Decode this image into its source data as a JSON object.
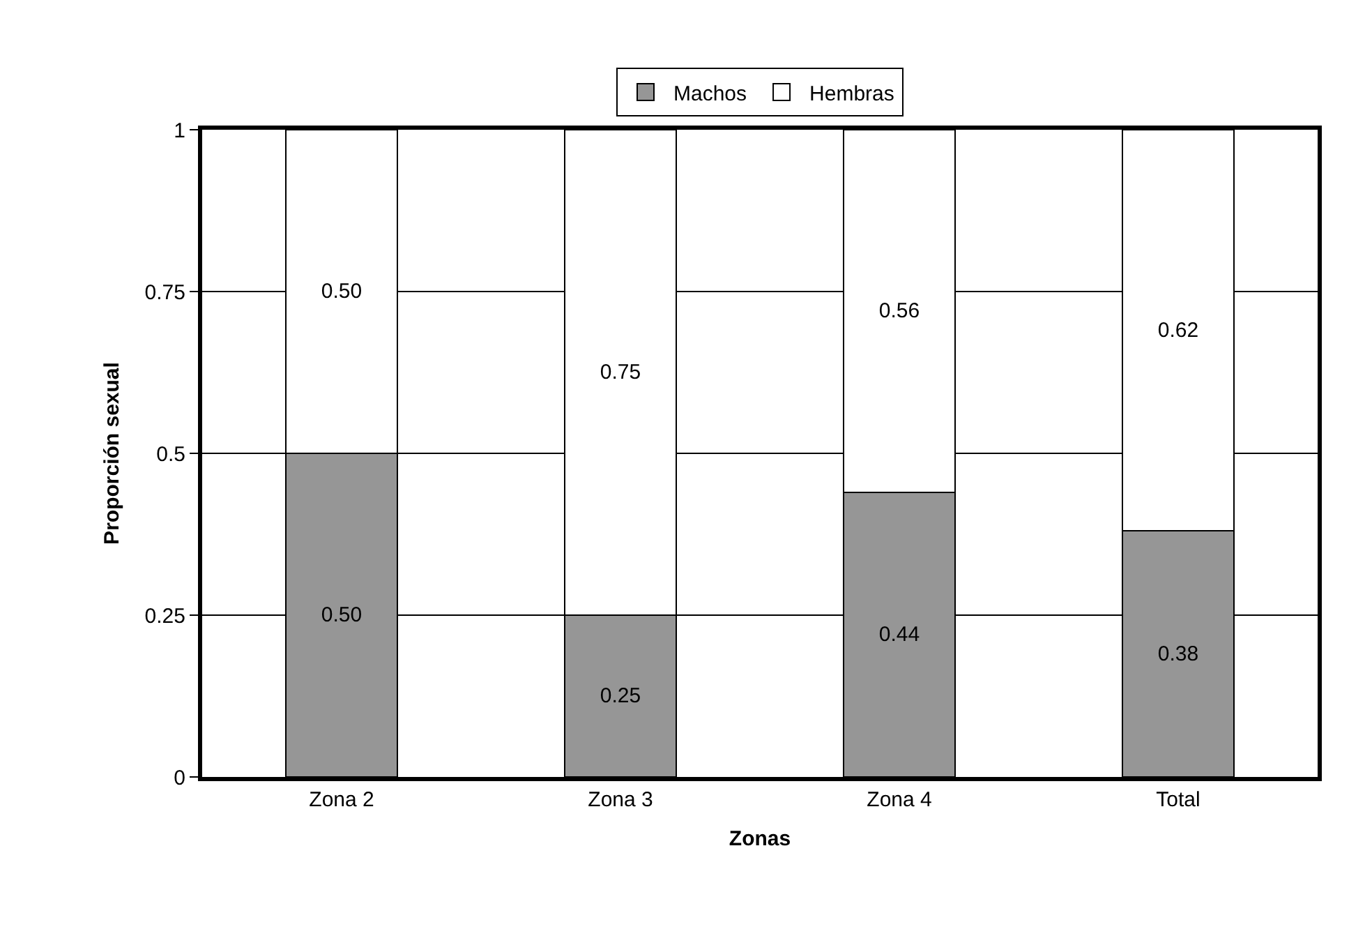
{
  "chart_data": {
    "type": "bar",
    "stacked": true,
    "xlabel": "Zonas",
    "ylabel": "Proporción sexual",
    "categories": [
      "Zona 2",
      "Zona 3",
      "Zona 4",
      "Total"
    ],
    "series": [
      {
        "name": "Machos",
        "color": "#969696",
        "values": [
          0.5,
          0.25,
          0.44,
          0.38
        ],
        "value_labels": [
          "0.50",
          "0.25",
          "0.44",
          "0.38"
        ]
      },
      {
        "name": "Hembras",
        "color": "#ffffff",
        "values": [
          0.5,
          0.75,
          0.56,
          0.62
        ],
        "value_labels": [
          "0.50",
          "0.75",
          "0.56",
          "0.62"
        ]
      }
    ],
    "ylim": [
      0,
      1
    ],
    "yticks": [
      0,
      0.25,
      0.5,
      0.75,
      1
    ],
    "grid": "y",
    "legend": "top"
  }
}
